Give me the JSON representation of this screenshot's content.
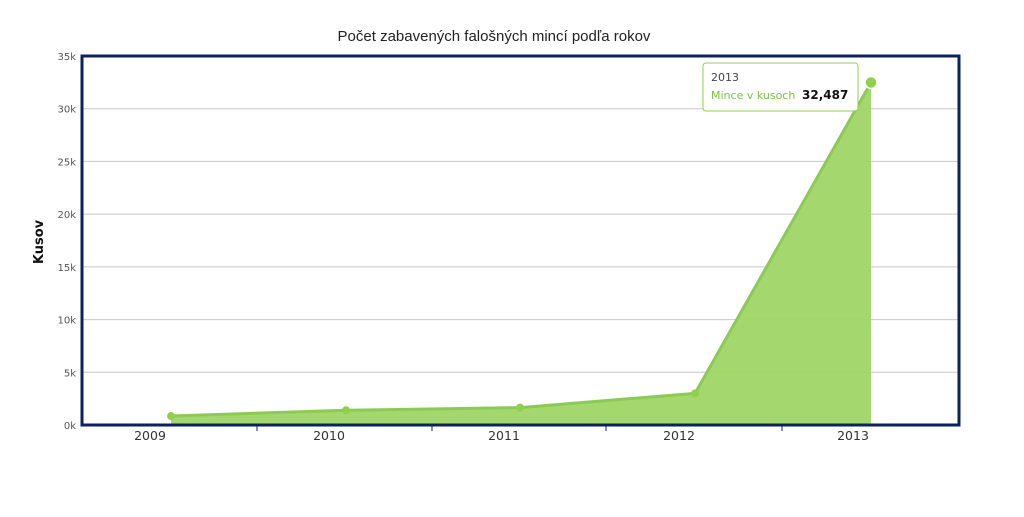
{
  "chart_data": {
    "type": "area",
    "title": "Počet zabavených falošných mincí podľa rokov",
    "xlabel": "",
    "ylabel": "Kusov",
    "categories": [
      "2009",
      "2010",
      "2011",
      "2012",
      "2013"
    ],
    "series": [
      {
        "name": "Mince v kusoch",
        "color": "#8fd14f",
        "values": [
          850,
          1400,
          1650,
          3000,
          32487
        ]
      }
    ],
    "ylim": [
      0,
      35000
    ],
    "y_ticks": [
      "0k",
      "5k",
      "10k",
      "15k",
      "20k",
      "25k",
      "30k",
      "35k"
    ],
    "grid": true,
    "legend": "none",
    "colors": {
      "area_fill": "#9fd667",
      "line": "#8bcb53",
      "plot_border": "#0c2260",
      "grid": "#c8c8c8"
    },
    "tooltip": {
      "category": "2013",
      "series_label": "Mince v kusoch",
      "value_text": "32,487"
    }
  }
}
